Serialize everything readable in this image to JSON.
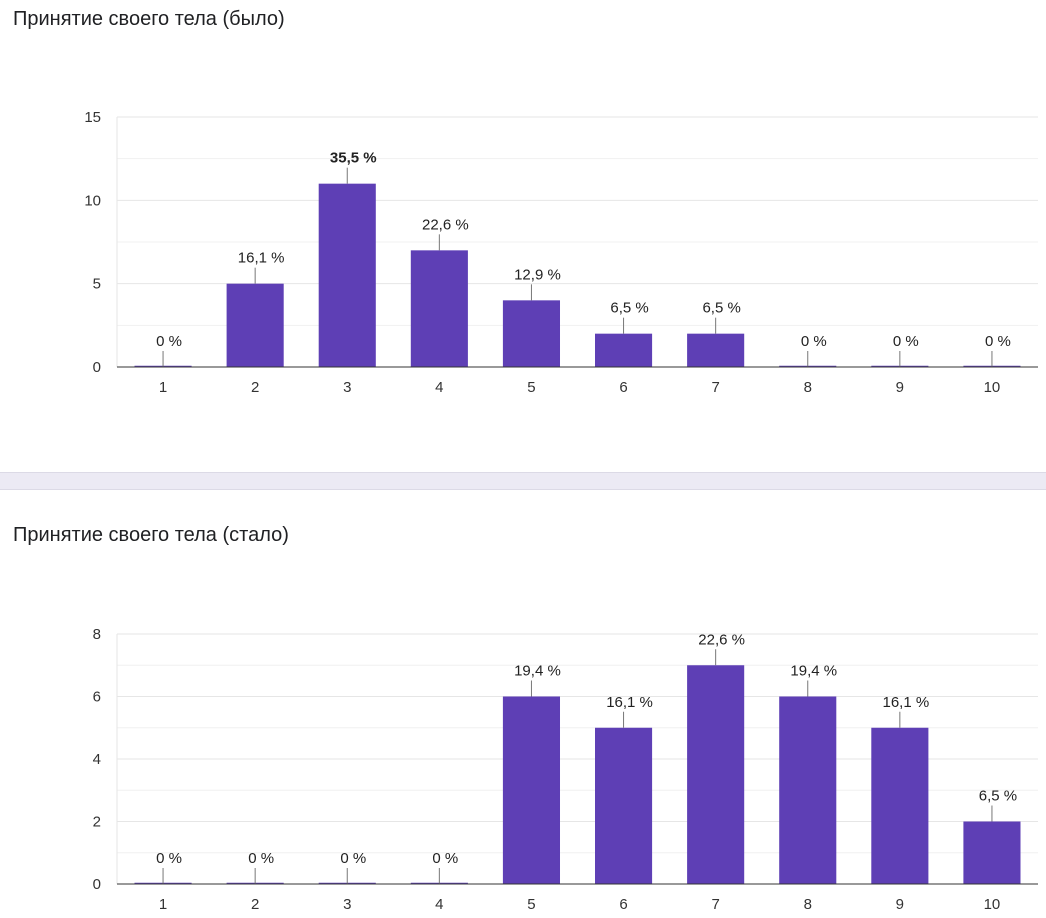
{
  "chart_data": [
    {
      "type": "bar",
      "title": "Принятие своего тела (было)",
      "xlabel": "",
      "ylabel": "",
      "ylim": [
        0,
        15
      ],
      "yticks": [
        0,
        5,
        10,
        15
      ],
      "categories": [
        "1",
        "2",
        "3",
        "4",
        "5",
        "6",
        "7",
        "8",
        "9",
        "10"
      ],
      "values": [
        0,
        5,
        11,
        7,
        4,
        2,
        2,
        0,
        0,
        0
      ],
      "labels": [
        "0 %",
        "16,1 %",
        "35,5 %",
        "22,6 %",
        "12,9 %",
        "6,5 %",
        "6,5 %",
        "0 %",
        "0 %",
        "0 %"
      ],
      "bold_label_index": 2,
      "color": "#5e3fb5"
    },
    {
      "type": "bar",
      "title": "Принятие своего тела (стало)",
      "xlabel": "",
      "ylabel": "",
      "ylim": [
        0,
        8
      ],
      "yticks": [
        0,
        2,
        4,
        6,
        8
      ],
      "categories": [
        "1",
        "2",
        "3",
        "4",
        "5",
        "6",
        "7",
        "8",
        "9",
        "10"
      ],
      "values": [
        0,
        0,
        0,
        0,
        6,
        5,
        7,
        6,
        5,
        2
      ],
      "labels": [
        "0 %",
        "0 %",
        "0 %",
        "0 %",
        "19,4 %",
        "16,1 %",
        "22,6 %",
        "19,4 %",
        "16,1 %",
        "6,5 %"
      ],
      "bold_label_index": -1,
      "color": "#5e3fb5"
    }
  ]
}
